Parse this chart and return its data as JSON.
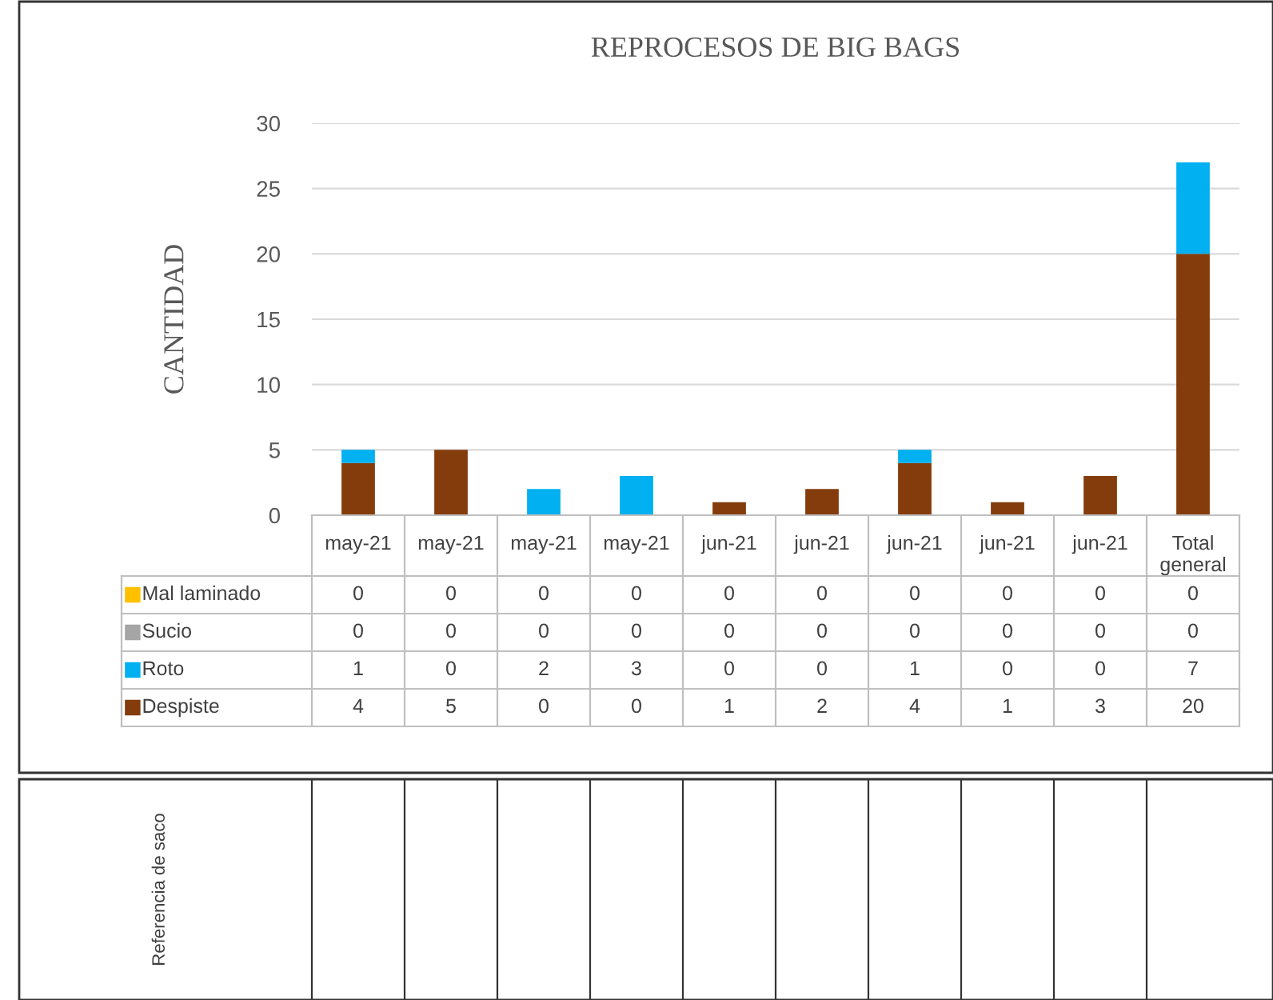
{
  "chart_data": {
    "type": "bar",
    "title": "REPROCESOS DE BIG BAGS",
    "ylabel": "CANTIDAD",
    "categories": [
      "may-21",
      "may-21",
      "may-21",
      "may-21",
      "jun-21",
      "jun-21",
      "jun-21",
      "jun-21",
      "jun-21",
      "Total general"
    ],
    "stacked": true,
    "data_labels": true,
    "legend": "bottom",
    "grid": "y",
    "ylim": [
      0,
      30
    ],
    "yticks": [
      0,
      5,
      10,
      15,
      20,
      25,
      30
    ],
    "series": [
      {
        "name": "Despiste",
        "color": "#843c0c",
        "values": [
          4,
          5,
          0,
          0,
          1,
          2,
          4,
          1,
          3,
          20
        ]
      },
      {
        "name": "Roto",
        "color": "#00b0f0",
        "values": [
          1,
          0,
          2,
          3,
          0,
          0,
          1,
          0,
          0,
          7
        ]
      },
      {
        "name": "Sucio",
        "color": "#a5a5a5",
        "values": [
          0,
          0,
          0,
          0,
          0,
          0,
          0,
          0,
          0,
          0
        ],
        "value_labels": [
          "0",
          "0",
          "0",
          "0",
          "0",
          "0",
          "0",
          "0",
          "0",
          "0"
        ]
      },
      {
        "name": "Mal laminado",
        "color": "#ffc000",
        "values": [
          0,
          0,
          0,
          0,
          0,
          0,
          0,
          0,
          0,
          0
        ],
        "value_labels": [
          "0",
          "0",
          "0",
          "0",
          "0",
          "0",
          "0",
          "0",
          "0",
          "0"
        ]
      }
    ],
    "annotations": [
      "Referencia de saco"
    ]
  }
}
